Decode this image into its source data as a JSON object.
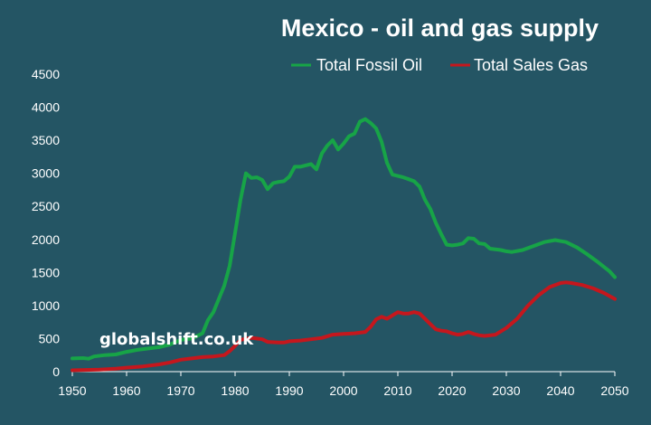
{
  "chart_data": {
    "type": "line",
    "title": "Mexico - oil and gas supply",
    "xlabel": "",
    "ylabel": "",
    "xlim": [
      1950,
      2050
    ],
    "ylim": [
      0,
      4500
    ],
    "x_ticks": [
      1950,
      1960,
      1970,
      1980,
      1990,
      2000,
      2010,
      2020,
      2030,
      2040,
      2050
    ],
    "y_ticks": [
      0,
      500,
      1000,
      1500,
      2000,
      2500,
      3000,
      3500,
      4000,
      4500
    ],
    "grid": false,
    "legend_position": "top-right",
    "watermark": "globalshift.co.uk",
    "series": [
      {
        "name": "Total Fossil Oil",
        "color": "#17a447",
        "points": [
          [
            1950,
            200
          ],
          [
            1952,
            205
          ],
          [
            1953,
            195
          ],
          [
            1954,
            230
          ],
          [
            1956,
            250
          ],
          [
            1958,
            260
          ],
          [
            1960,
            300
          ],
          [
            1962,
            330
          ],
          [
            1964,
            350
          ],
          [
            1966,
            370
          ],
          [
            1968,
            410
          ],
          [
            1970,
            480
          ],
          [
            1972,
            500
          ],
          [
            1974,
            580
          ],
          [
            1975,
            780
          ],
          [
            1976,
            900
          ],
          [
            1977,
            1100
          ],
          [
            1978,
            1300
          ],
          [
            1979,
            1600
          ],
          [
            1980,
            2100
          ],
          [
            1981,
            2600
          ],
          [
            1982,
            3000
          ],
          [
            1983,
            2930
          ],
          [
            1984,
            2940
          ],
          [
            1985,
            2900
          ],
          [
            1986,
            2760
          ],
          [
            1987,
            2850
          ],
          [
            1988,
            2870
          ],
          [
            1989,
            2880
          ],
          [
            1990,
            2950
          ],
          [
            1991,
            3100
          ],
          [
            1992,
            3100
          ],
          [
            1993,
            3120
          ],
          [
            1994,
            3140
          ],
          [
            1995,
            3060
          ],
          [
            1996,
            3300
          ],
          [
            1997,
            3420
          ],
          [
            1998,
            3500
          ],
          [
            1999,
            3360
          ],
          [
            2000,
            3450
          ],
          [
            2001,
            3560
          ],
          [
            2002,
            3600
          ],
          [
            2003,
            3780
          ],
          [
            2004,
            3820
          ],
          [
            2005,
            3760
          ],
          [
            2006,
            3680
          ],
          [
            2007,
            3480
          ],
          [
            2008,
            3160
          ],
          [
            2009,
            2980
          ],
          [
            2010,
            2960
          ],
          [
            2011,
            2940
          ],
          [
            2012,
            2910
          ],
          [
            2013,
            2880
          ],
          [
            2014,
            2800
          ],
          [
            2015,
            2600
          ],
          [
            2016,
            2460
          ],
          [
            2017,
            2250
          ],
          [
            2018,
            2080
          ],
          [
            2019,
            1920
          ],
          [
            2020,
            1910
          ],
          [
            2021,
            1920
          ],
          [
            2022,
            1940
          ],
          [
            2023,
            2020
          ],
          [
            2024,
            2010
          ],
          [
            2025,
            1940
          ],
          [
            2026,
            1930
          ],
          [
            2027,
            1860
          ],
          [
            2029,
            1840
          ],
          [
            2030,
            1820
          ],
          [
            2031,
            1810
          ],
          [
            2033,
            1840
          ],
          [
            2035,
            1900
          ],
          [
            2037,
            1960
          ],
          [
            2039,
            1990
          ],
          [
            2041,
            1960
          ],
          [
            2043,
            1880
          ],
          [
            2045,
            1770
          ],
          [
            2047,
            1650
          ],
          [
            2049,
            1520
          ],
          [
            2050,
            1430
          ]
        ]
      },
      {
        "name": "Total Sales Gas",
        "color": "#c5171d",
        "points": [
          [
            1950,
            20
          ],
          [
            1955,
            30
          ],
          [
            1958,
            45
          ],
          [
            1960,
            60
          ],
          [
            1963,
            80
          ],
          [
            1966,
            110
          ],
          [
            1968,
            140
          ],
          [
            1970,
            180
          ],
          [
            1972,
            200
          ],
          [
            1974,
            220
          ],
          [
            1976,
            230
          ],
          [
            1978,
            250
          ],
          [
            1979,
            310
          ],
          [
            1980,
            390
          ],
          [
            1981,
            480
          ],
          [
            1982,
            500
          ],
          [
            1983,
            510
          ],
          [
            1984,
            500
          ],
          [
            1985,
            490
          ],
          [
            1986,
            450
          ],
          [
            1988,
            440
          ],
          [
            1989,
            440
          ],
          [
            1990,
            460
          ],
          [
            1992,
            470
          ],
          [
            1994,
            490
          ],
          [
            1996,
            510
          ],
          [
            1998,
            560
          ],
          [
            2000,
            570
          ],
          [
            2002,
            580
          ],
          [
            2004,
            600
          ],
          [
            2005,
            680
          ],
          [
            2006,
            790
          ],
          [
            2007,
            830
          ],
          [
            2008,
            800
          ],
          [
            2009,
            850
          ],
          [
            2010,
            900
          ],
          [
            2011,
            880
          ],
          [
            2012,
            880
          ],
          [
            2013,
            900
          ],
          [
            2014,
            880
          ],
          [
            2015,
            800
          ],
          [
            2016,
            720
          ],
          [
            2017,
            640
          ],
          [
            2018,
            620
          ],
          [
            2019,
            610
          ],
          [
            2020,
            580
          ],
          [
            2021,
            560
          ],
          [
            2022,
            570
          ],
          [
            2023,
            600
          ],
          [
            2024,
            570
          ],
          [
            2025,
            550
          ],
          [
            2026,
            540
          ],
          [
            2028,
            560
          ],
          [
            2030,
            660
          ],
          [
            2032,
            800
          ],
          [
            2034,
            1000
          ],
          [
            2036,
            1160
          ],
          [
            2038,
            1280
          ],
          [
            2040,
            1340
          ],
          [
            2041,
            1350
          ],
          [
            2042,
            1340
          ],
          [
            2044,
            1310
          ],
          [
            2046,
            1260
          ],
          [
            2048,
            1190
          ],
          [
            2050,
            1100
          ]
        ]
      }
    ]
  }
}
